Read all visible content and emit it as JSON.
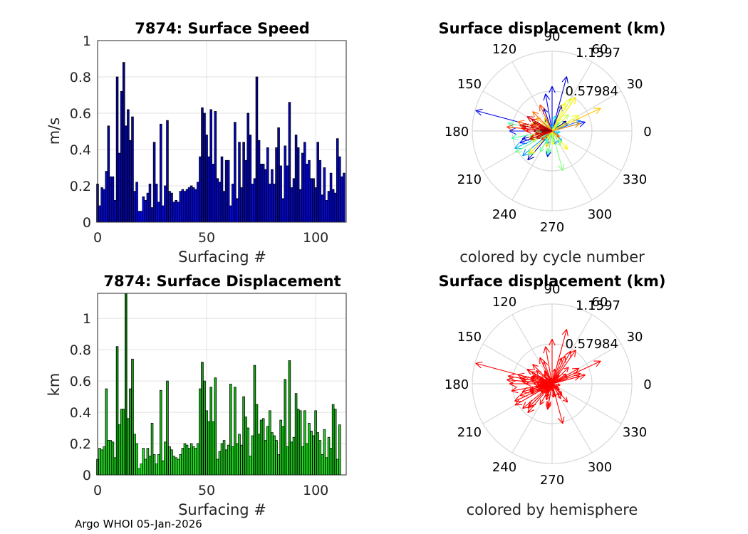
{
  "footer": "Argo WHOI 05-Jan-2026",
  "chart_data": [
    {
      "type": "bar",
      "title": "7874: Surface Speed",
      "xlabel": "Surfacing #",
      "ylabel": "m/s",
      "xlim": [
        0,
        114
      ],
      "ylim": [
        0,
        1
      ],
      "xticks": [
        "0",
        "50",
        "100"
      ],
      "yticks": [
        "0",
        "0.2",
        "0.4",
        "0.6",
        "0.8",
        "1"
      ],
      "color_scheme": "blue",
      "values": [
        0.21,
        0.09,
        0.19,
        0.18,
        0.28,
        0.53,
        0.25,
        0.25,
        0.12,
        0.8,
        0.38,
        0.72,
        0.88,
        0.53,
        0.62,
        0.45,
        0.58,
        0.17,
        0.22,
        0.06,
        0.06,
        0.14,
        0.12,
        0.16,
        0.21,
        0.08,
        0.44,
        0.21,
        0.11,
        0.54,
        0.09,
        0.2,
        0.56,
        0.17,
        0.16,
        0.11,
        0.12,
        0.11,
        0.17,
        0.18,
        0.17,
        0.18,
        0.19,
        0.2,
        0.19,
        0.18,
        0.22,
        0.36,
        0.63,
        0.6,
        0.48,
        0.36,
        0.62,
        0.32,
        0.61,
        0.24,
        0.22,
        0.36,
        0.17,
        0.34,
        0.34,
        0.09,
        0.21,
        0.55,
        0.13,
        0.44,
        0.19,
        0.44,
        0.34,
        0.6,
        0.48,
        0.21,
        0.24,
        0.8,
        0.45,
        0.32,
        0.32,
        0.29,
        0.41,
        0.21,
        0.29,
        0.21,
        0.41,
        0.52,
        0.31,
        0.13,
        0.42,
        0.31,
        0.66,
        0.19,
        0.24,
        0.48,
        0.41,
        0.18,
        0.38,
        0.44,
        0.32,
        0.34,
        0.24,
        0.24,
        0.19,
        0.44,
        0.34,
        0.15,
        0.3,
        0.12,
        0.17,
        0.27,
        0.18,
        0.16,
        0.46,
        0.36,
        0.25,
        0.27
      ]
    },
    {
      "type": "polar_vectors",
      "title": "Surface displacement (km)",
      "caption": "colored by cycle number",
      "rings": [
        "0.57984",
        "1.1597"
      ],
      "rmax": 1.1597,
      "angle_labels": [
        "0",
        "30",
        "60",
        "90",
        "120",
        "150",
        "180",
        "210",
        "240",
        "270",
        "300",
        "330"
      ],
      "angles_deg": [
        0,
        30,
        60,
        90,
        120,
        150,
        180,
        210,
        240,
        270,
        300,
        330
      ],
      "vectors": [
        {
          "deg": 35,
          "r": 0.25
        },
        {
          "deg": 200,
          "r": 0.17
        },
        {
          "deg": 160,
          "r": 0.16
        },
        {
          "deg": 120,
          "r": 0.2
        },
        {
          "deg": 230,
          "r": 0.55
        },
        {
          "deg": 195,
          "r": 0.45
        },
        {
          "deg": 70,
          "r": 0.4
        },
        {
          "deg": 110,
          "r": 0.35
        },
        {
          "deg": 75,
          "r": 0.82
        },
        {
          "deg": 260,
          "r": 0.38
        },
        {
          "deg": 150,
          "r": 0.42
        },
        {
          "deg": 90,
          "r": 0.65
        },
        {
          "deg": 165,
          "r": 1.15
        },
        {
          "deg": 100,
          "r": 0.55
        },
        {
          "deg": 200,
          "r": 0.5
        },
        {
          "deg": 15,
          "r": 0.5
        },
        {
          "deg": 180,
          "r": 0.62
        },
        {
          "deg": 285,
          "r": 0.2
        },
        {
          "deg": 25,
          "r": 0.25
        },
        {
          "deg": 300,
          "r": 0.06
        },
        {
          "deg": 240,
          "r": 0.06
        },
        {
          "deg": 160,
          "r": 0.14
        },
        {
          "deg": 45,
          "r": 0.12
        },
        {
          "deg": 210,
          "r": 0.15
        },
        {
          "deg": 250,
          "r": 0.2
        },
        {
          "deg": 135,
          "r": 0.08
        },
        {
          "deg": 20,
          "r": 0.44
        },
        {
          "deg": 190,
          "r": 0.2
        },
        {
          "deg": 330,
          "r": 0.1
        },
        {
          "deg": 220,
          "r": 0.56
        },
        {
          "deg": 100,
          "r": 0.09
        },
        {
          "deg": 315,
          "r": 0.2
        },
        {
          "deg": 205,
          "r": 0.6
        },
        {
          "deg": 300,
          "r": 0.2
        },
        {
          "deg": 180,
          "r": 0.18
        },
        {
          "deg": 140,
          "r": 0.12
        },
        {
          "deg": 350,
          "r": 0.12
        },
        {
          "deg": 270,
          "r": 0.1
        },
        {
          "deg": 50,
          "r": 0.16
        },
        {
          "deg": 200,
          "r": 0.18
        },
        {
          "deg": 235,
          "r": 0.17
        },
        {
          "deg": 185,
          "r": 0.2
        },
        {
          "deg": 80,
          "r": 0.22
        },
        {
          "deg": 215,
          "r": 0.2
        },
        {
          "deg": 245,
          "r": 0.21
        },
        {
          "deg": 280,
          "r": 0.18
        },
        {
          "deg": 310,
          "r": 0.22
        },
        {
          "deg": 260,
          "r": 0.35
        },
        {
          "deg": 170,
          "r": 0.65
        },
        {
          "deg": 190,
          "r": 0.6
        },
        {
          "deg": 225,
          "r": 0.5
        },
        {
          "deg": 240,
          "r": 0.35
        },
        {
          "deg": 210,
          "r": 0.62
        },
        {
          "deg": 260,
          "r": 0.32
        },
        {
          "deg": 285,
          "r": 0.6
        },
        {
          "deg": 300,
          "r": 0.25
        },
        {
          "deg": 180,
          "r": 0.22
        },
        {
          "deg": 195,
          "r": 0.35
        },
        {
          "deg": 130,
          "r": 0.18
        },
        {
          "deg": 205,
          "r": 0.34
        },
        {
          "deg": 45,
          "r": 0.34
        },
        {
          "deg": 320,
          "r": 0.1
        },
        {
          "deg": 150,
          "r": 0.2
        },
        {
          "deg": 60,
          "r": 0.55
        },
        {
          "deg": 240,
          "r": 0.13
        },
        {
          "deg": 30,
          "r": 0.45
        },
        {
          "deg": 275,
          "r": 0.2
        },
        {
          "deg": 65,
          "r": 0.45
        },
        {
          "deg": 310,
          "r": 0.35
        },
        {
          "deg": 55,
          "r": 0.6
        },
        {
          "deg": 225,
          "r": 0.47
        },
        {
          "deg": 120,
          "r": 0.22
        },
        {
          "deg": 250,
          "r": 0.25
        },
        {
          "deg": 25,
          "r": 0.78
        },
        {
          "deg": 175,
          "r": 0.45
        },
        {
          "deg": 160,
          "r": 0.32
        },
        {
          "deg": 200,
          "r": 0.33
        },
        {
          "deg": 140,
          "r": 0.3
        },
        {
          "deg": 15,
          "r": 0.42
        },
        {
          "deg": 190,
          "r": 0.22
        },
        {
          "deg": 160,
          "r": 0.3
        },
        {
          "deg": 205,
          "r": 0.22
        },
        {
          "deg": 135,
          "r": 0.4
        },
        {
          "deg": 165,
          "r": 0.52
        },
        {
          "deg": 195,
          "r": 0.32
        },
        {
          "deg": 320,
          "r": 0.14
        },
        {
          "deg": 115,
          "r": 0.42
        },
        {
          "deg": 170,
          "r": 0.31
        },
        {
          "deg": 175,
          "r": 0.66
        },
        {
          "deg": 220,
          "r": 0.2
        },
        {
          "deg": 155,
          "r": 0.25
        },
        {
          "deg": 170,
          "r": 0.48
        },
        {
          "deg": 150,
          "r": 0.42
        },
        {
          "deg": 195,
          "r": 0.18
        },
        {
          "deg": 180,
          "r": 0.38
        },
        {
          "deg": 175,
          "r": 0.44
        },
        {
          "deg": 165,
          "r": 0.33
        },
        {
          "deg": 150,
          "r": 0.35
        },
        {
          "deg": 205,
          "r": 0.25
        },
        {
          "deg": 190,
          "r": 0.25
        },
        {
          "deg": 160,
          "r": 0.2
        },
        {
          "deg": 170,
          "r": 0.44
        },
        {
          "deg": 200,
          "r": 0.35
        },
        {
          "deg": 185,
          "r": 0.15
        },
        {
          "deg": 155,
          "r": 0.3
        },
        {
          "deg": 165,
          "r": 0.12
        },
        {
          "deg": 175,
          "r": 0.17
        },
        {
          "deg": 180,
          "r": 0.27
        }
      ]
    },
    {
      "type": "bar",
      "title": "7874: Surface Displacement",
      "xlabel": "Surfacing #",
      "ylabel": "km",
      "xlim": [
        0,
        114
      ],
      "ylim": [
        0,
        1.16
      ],
      "xticks": [
        "0",
        "50",
        "100"
      ],
      "yticks": [
        "0",
        "0.2",
        "0.4",
        "0.6",
        "0.8",
        "1"
      ],
      "color_scheme": "green",
      "values": [
        0.1,
        0.17,
        0.16,
        0.18,
        0.55,
        0.22,
        0.22,
        0.21,
        0.11,
        0.82,
        0.32,
        0.42,
        0.42,
        1.16,
        0.36,
        0.55,
        0.74,
        0.26,
        0.2,
        0.04,
        0.07,
        0.17,
        0.1,
        0.17,
        0.12,
        0.33,
        0.13,
        0.07,
        0.13,
        0.54,
        0.09,
        0.21,
        0.6,
        0.18,
        0.16,
        0.12,
        0.11,
        0.1,
        0.13,
        0.17,
        0.2,
        0.19,
        0.17,
        0.2,
        0.18,
        0.17,
        0.2,
        0.55,
        0.72,
        0.6,
        0.41,
        0.34,
        0.56,
        0.34,
        0.62,
        0.1,
        0.15,
        0.2,
        0.22,
        0.16,
        0.19,
        0.58,
        0.18,
        0.56,
        0.2,
        0.26,
        0.19,
        0.5,
        0.37,
        0.3,
        0.12,
        0.25,
        0.7,
        0.45,
        0.26,
        0.35,
        0.36,
        0.22,
        0.31,
        0.41,
        0.27,
        0.25,
        0.22,
        0.13,
        0.35,
        0.31,
        0.61,
        0.18,
        0.73,
        0.21,
        0.24,
        0.52,
        0.42,
        0.41,
        0.18,
        0.41,
        0.2,
        0.33,
        0.28,
        0.25,
        0.41,
        0.27,
        0.22,
        0.13,
        0.29,
        0.11,
        0.24,
        0.17,
        0.45,
        0.42,
        0.1,
        0.32
      ]
    },
    {
      "type": "polar_vectors",
      "title": "Surface displacement (km)",
      "caption": "colored by hemisphere",
      "rings": [
        "0.57984",
        "1.1597"
      ],
      "rmax": 1.1597,
      "angle_labels": [
        "0",
        "30",
        "60",
        "90",
        "120",
        "150",
        "180",
        "210",
        "240",
        "270",
        "300",
        "330"
      ],
      "angles_deg": [
        0,
        30,
        60,
        90,
        120,
        150,
        180,
        210,
        240,
        270,
        300,
        330
      ],
      "vector_color": "#ff0000",
      "vectors": "same"
    }
  ]
}
